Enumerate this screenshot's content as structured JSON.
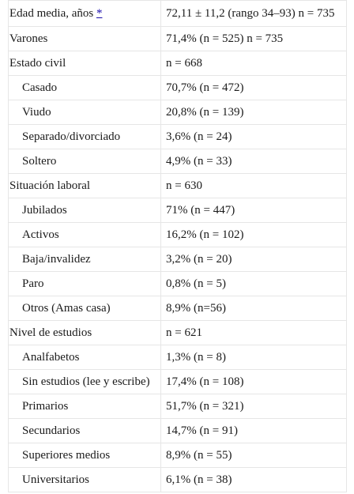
{
  "table": {
    "rows": [
      {
        "label": "Edad media, años",
        "ref": "*",
        "value": "72,11 ± 11,2 (rango 34–93) n = 735",
        "indent": false
      },
      {
        "label": "Varones",
        "value": "71,4% (n = 525) n = 735",
        "indent": false
      },
      {
        "label": "Estado civil",
        "value": "n = 668",
        "indent": false
      },
      {
        "label": "Casado",
        "value": "70,7% (n = 472)",
        "indent": true
      },
      {
        "label": "Viudo",
        "value": "20,8% (n = 139)",
        "indent": true
      },
      {
        "label": "Separado/divorciado",
        "value": "3,6% (n = 24)",
        "indent": true
      },
      {
        "label": "Soltero",
        "value": "4,9% (n = 33)",
        "indent": true
      },
      {
        "label": "Situación laboral",
        "value": "n = 630",
        "indent": false
      },
      {
        "label": "Jubilados",
        "value": "71% (n = 447)",
        "indent": true
      },
      {
        "label": "Activos",
        "value": "16,2% (n = 102)",
        "indent": true
      },
      {
        "label": "Baja/invalidez",
        "value": "3,2% (n = 20)",
        "indent": true
      },
      {
        "label": "Paro",
        "value": "0,8% (n = 5)",
        "indent": true
      },
      {
        "label": "Otros (Amas casa)",
        "value": "8,9% (n=56)",
        "indent": true
      },
      {
        "label": "Nivel de estudios",
        "value": "n = 621",
        "indent": false
      },
      {
        "label": "Analfabetos",
        "value": "1,3% (n = 8)",
        "indent": true
      },
      {
        "label": "Sin estudios (lee y escribe)",
        "value": "17,4% (n = 108)",
        "indent": true
      },
      {
        "label": "Primarios",
        "value": "51,7% (n = 321)",
        "indent": true
      },
      {
        "label": "Secundarios",
        "value": "14,7% (n = 91)",
        "indent": true
      },
      {
        "label": "Superiores medios",
        "value": "8,9% (n = 55)",
        "indent": true
      },
      {
        "label": "Universitarios",
        "value": "6,1% (n = 38)",
        "indent": true
      }
    ]
  }
}
